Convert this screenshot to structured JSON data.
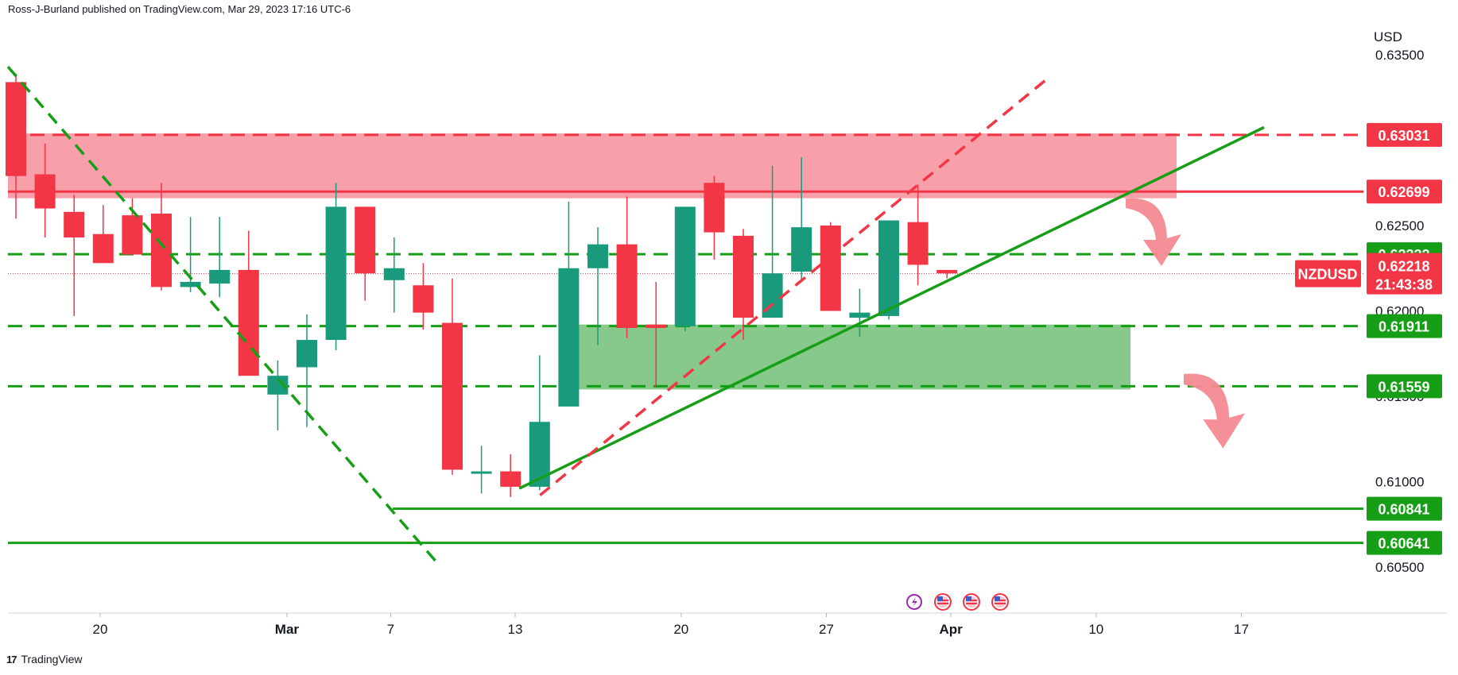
{
  "header": {
    "publisher_line": "Ross-J-Burland published on TradingView.com, Mar 29, 2023 17:16 UTC-6"
  },
  "footer": {
    "brand": "TradingView",
    "logo_glyph": "17"
  },
  "colors": {
    "up": "#26a69a",
    "up_body": "#1a9a7d",
    "down": "#f23645",
    "resistance_zone": "#f7a0aa",
    "support_zone": "#86c98a",
    "green_line": "#179e17",
    "red_line": "#f23645",
    "tag_green": "#179e17",
    "tag_red": "#f23645"
  },
  "chart_data": {
    "type": "candlestick",
    "symbol": "NZDUSD",
    "currency": "USD",
    "price_axis_ticks": [
      "0.63500",
      "0.62500",
      "0.62000",
      "0.61500",
      "0.61000",
      "0.60500"
    ],
    "time_axis_ticks": [
      "20",
      "Mar",
      "7",
      "13",
      "20",
      "27",
      "Apr",
      "10",
      "17"
    ],
    "last_price": "0.62218",
    "countdown": "21:43:38",
    "ylim": [
      0.6028,
      0.6374
    ],
    "candles": [
      {
        "o": 0.6334,
        "h": 0.6339,
        "l": 0.6254,
        "c": 0.6279
      },
      {
        "o": 0.628,
        "h": 0.6298,
        "l": 0.6243,
        "c": 0.626
      },
      {
        "o": 0.6258,
        "h": 0.6268,
        "l": 0.6197,
        "c": 0.6243
      },
      {
        "o": 0.6245,
        "h": 0.6262,
        "l": 0.6228,
        "c": 0.6228
      },
      {
        "o": 0.6256,
        "h": 0.6266,
        "l": 0.6233,
        "c": 0.6233
      },
      {
        "o": 0.6257,
        "h": 0.6275,
        "l": 0.6212,
        "c": 0.6214
      },
      {
        "o": 0.6214,
        "h": 0.6255,
        "l": 0.6211,
        "c": 0.6217
      },
      {
        "o": 0.6216,
        "h": 0.6255,
        "l": 0.6208,
        "c": 0.6224
      },
      {
        "o": 0.6224,
        "h": 0.6247,
        "l": 0.6165,
        "c": 0.6162
      },
      {
        "o": 0.6151,
        "h": 0.6171,
        "l": 0.613,
        "c": 0.6162
      },
      {
        "o": 0.6167,
        "h": 0.6198,
        "l": 0.6132,
        "c": 0.6183
      },
      {
        "o": 0.6183,
        "h": 0.6275,
        "l": 0.6177,
        "c": 0.6261
      },
      {
        "o": 0.6261,
        "h": 0.6261,
        "l": 0.6206,
        "c": 0.6222
      },
      {
        "o": 0.6218,
        "h": 0.6243,
        "l": 0.6199,
        "c": 0.6225
      },
      {
        "o": 0.6215,
        "h": 0.6228,
        "l": 0.6189,
        "c": 0.6199
      },
      {
        "o": 0.6193,
        "h": 0.6219,
        "l": 0.6104,
        "c": 0.6107
      },
      {
        "o": 0.6105,
        "h": 0.6121,
        "l": 0.6093,
        "c": 0.6106
      },
      {
        "o": 0.6106,
        "h": 0.6116,
        "l": 0.6091,
        "c": 0.6097
      },
      {
        "o": 0.6097,
        "h": 0.6174,
        "l": 0.6095,
        "c": 0.6135
      },
      {
        "o": 0.6144,
        "h": 0.6264,
        "l": 0.6144,
        "c": 0.6225
      },
      {
        "o": 0.6225,
        "h": 0.6249,
        "l": 0.618,
        "c": 0.6239
      },
      {
        "o": 0.6239,
        "h": 0.6267,
        "l": 0.6184,
        "c": 0.619
      },
      {
        "o": 0.6192,
        "h": 0.6217,
        "l": 0.6155,
        "c": 0.619
      },
      {
        "o": 0.6191,
        "h": 0.6259,
        "l": 0.6188,
        "c": 0.6261
      },
      {
        "o": 0.6275,
        "h": 0.6279,
        "l": 0.623,
        "c": 0.6246
      },
      {
        "o": 0.6244,
        "h": 0.6248,
        "l": 0.6183,
        "c": 0.6196
      },
      {
        "o": 0.6196,
        "h": 0.6285,
        "l": 0.6196,
        "c": 0.6222
      },
      {
        "o": 0.6223,
        "h": 0.629,
        "l": 0.6217,
        "c": 0.6249
      },
      {
        "o": 0.625,
        "h": 0.6252,
        "l": 0.62,
        "c": 0.62
      },
      {
        "o": 0.6196,
        "h": 0.6213,
        "l": 0.6185,
        "c": 0.6199
      },
      {
        "o": 0.6197,
        "h": 0.6252,
        "l": 0.6195,
        "c": 0.6253
      },
      {
        "o": 0.6252,
        "h": 0.6274,
        "l": 0.6215,
        "c": 0.6227
      },
      {
        "o": 0.6224,
        "h": 0.6224,
        "l": 0.6219,
        "c": 0.6222
      }
    ],
    "levels": [
      {
        "label": "0.63031",
        "value": 0.63031,
        "style": "dashed",
        "color": "red"
      },
      {
        "label": "0.62699",
        "value": 0.62699,
        "style": "solid",
        "color": "red"
      },
      {
        "label": "0.62332",
        "value": 0.62332,
        "style": "dashed",
        "color": "green"
      },
      {
        "label": "0.61911",
        "value": 0.61911,
        "style": "dashed",
        "color": "green"
      },
      {
        "label": "0.61559",
        "value": 0.61559,
        "style": "dashed",
        "color": "green"
      },
      {
        "label": "0.60841",
        "value": 0.60841,
        "style": "solid",
        "color": "green"
      },
      {
        "label": "0.60641",
        "value": 0.60641,
        "style": "solid",
        "color": "green"
      }
    ],
    "resistance_zone": [
      0.6266,
      0.6304
    ],
    "support_zone": [
      0.6154,
      0.6192
    ],
    "annotations": [
      "bearish-arrow",
      "bearish-arrow"
    ],
    "event_icons": [
      "lightning-icon",
      "us-flag-icon",
      "us-flag-icon",
      "us-flag-icon"
    ]
  }
}
